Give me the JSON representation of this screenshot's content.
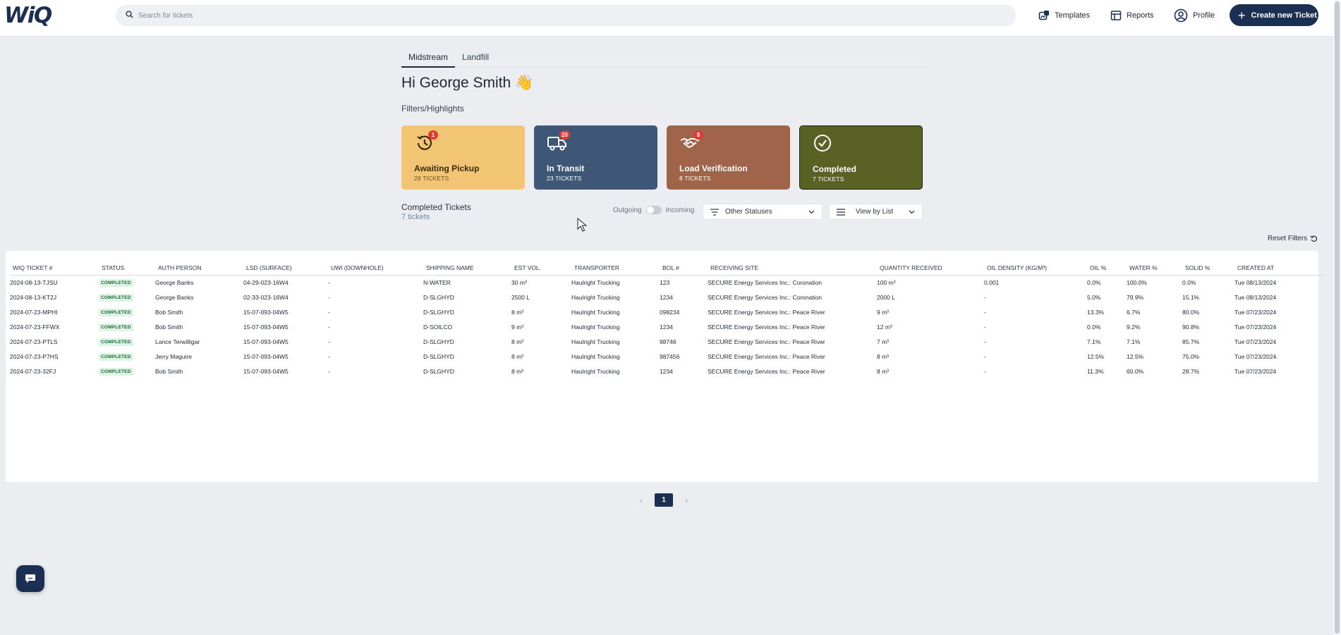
{
  "app": {
    "logo": "WiQ"
  },
  "search": {
    "placeholder": "Search for tickets"
  },
  "nav": {
    "templates": "Templates",
    "reports": "Reports",
    "profile": "Profile",
    "create": "Create new Ticket"
  },
  "tabs": [
    "Midstream",
    "Landfill"
  ],
  "greeting": "Hi George Smith 👋",
  "filters_title": "Filters/Highlights",
  "cards": [
    {
      "title": "Awaiting Pickup",
      "count": "28 TICKETS",
      "badge": "1",
      "color": "#f2c575",
      "icon": "history-clock-icon"
    },
    {
      "title": "In Transit",
      "count": "23 TICKETS",
      "badge": "20",
      "color": "#3f5777",
      "icon": "delivery-truck-icon"
    },
    {
      "title": "Load Verification",
      "count": "8 TICKETS",
      "badge": "8",
      "color": "#a0644a",
      "icon": "handshake-icon"
    },
    {
      "title": "Completed",
      "count": "7 TICKETS",
      "color": "#5a6125",
      "icon": "check-circle-icon"
    }
  ],
  "list": {
    "title": "Completed Tickets",
    "count": "7 tickets"
  },
  "toggle": {
    "left": "Outgoing",
    "right": "Incoming"
  },
  "status_filter": "Other Statuses",
  "view_mode": "View by List",
  "reset": "Reset Filters",
  "table": {
    "headers": [
      "WIQ TICKET #",
      "STATUS",
      "AUTH PERSON",
      "LSD (SURFACE)",
      "UWI (DOWNHOLE)",
      "SHIPPING NAME",
      "EST VOL.",
      "TRANSPORTER",
      "BOL #",
      "RECEIVING SITE",
      "QUANTITY RECEIVED",
      "OIL DENSITY (KG/M³)",
      "OIL %",
      "WATER %",
      "SOLID %",
      "CREATED AT"
    ],
    "rows": [
      [
        "2024-08-13-TJSU",
        "COMPLETED",
        "George Banks",
        "04-29-023-16W4",
        "-",
        "N-WATER",
        "30 m³",
        "Haulright Trucking",
        "123",
        "SECURE Energy Services Inc.: Coronation",
        "100 m³",
        "0.001",
        "0.0%",
        "100.0%",
        "0.0%",
        "Tue 08/13/2024"
      ],
      [
        "2024-08-13-KT2J",
        "COMPLETED",
        "George Banks",
        "02-33-023-16W4",
        "-",
        "D-SLGHYD",
        "2500 L",
        "Haulright Trucking",
        "1234",
        "SECURE Energy Services Inc.: Coronation",
        "2000 L",
        "-",
        "5.0%",
        "79.9%",
        "15.1%",
        "Tue 08/13/2024"
      ],
      [
        "2024-07-23-MPHI",
        "COMPLETED",
        "Bob Smith",
        "15-07-093-04W5",
        "-",
        "D-SLGHYD",
        "8 m³",
        "Haulright Trucking",
        "098234",
        "SECURE Energy Services Inc.: Peace River",
        "9 m³",
        "-",
        "13.3%",
        "6.7%",
        "80.0%",
        "Tue 07/23/2024"
      ],
      [
        "2024-07-23-FFWX",
        "COMPLETED",
        "Bob Smith",
        "15-07-093-04W5",
        "-",
        "D-SOILCO",
        "9 m³",
        "Haulright Trucking",
        "1234",
        "SECURE Energy Services Inc.: Peace River",
        "12 m³",
        "-",
        "0.0%",
        "9.2%",
        "90.8%",
        "Tue 07/23/2024"
      ],
      [
        "2024-07-23-PTLS",
        "COMPLETED",
        "Lance Terwilligar",
        "15-07-093-04W5",
        "-",
        "D-SLGHYD",
        "8 m³",
        "Haulright Trucking",
        "98746",
        "SECURE Energy Services Inc.: Peace River",
        "7 m³",
        "-",
        "7.1%",
        "7.1%",
        "85.7%",
        "Tue 07/23/2024"
      ],
      [
        "2024-07-23-P7HS",
        "COMPLETED",
        "Jerry Maguire",
        "15-07-093-04W5",
        "-",
        "D-SLGHYD",
        "8 m³",
        "Haulright Trucking",
        "987456",
        "SECURE Energy Services Inc.: Peace River",
        "8 m³",
        "-",
        "12.5%",
        "12.5%",
        "75.0%",
        "Tue 07/23/2024"
      ],
      [
        "2024-07-23-32FJ",
        "COMPLETED",
        "Bob Smith",
        "15-07-093-04W5",
        "-",
        "D-SLGHYD",
        "8 m³",
        "Haulright Trucking",
        "1234",
        "SECURE Energy Services Inc.: Peace River",
        "8 m³",
        "-",
        "11.3%",
        "60.0%",
        "28.7%",
        "Tue 07/23/2024"
      ]
    ]
  },
  "pagination": {
    "prev": "‹",
    "current": "1",
    "next": "›"
  }
}
